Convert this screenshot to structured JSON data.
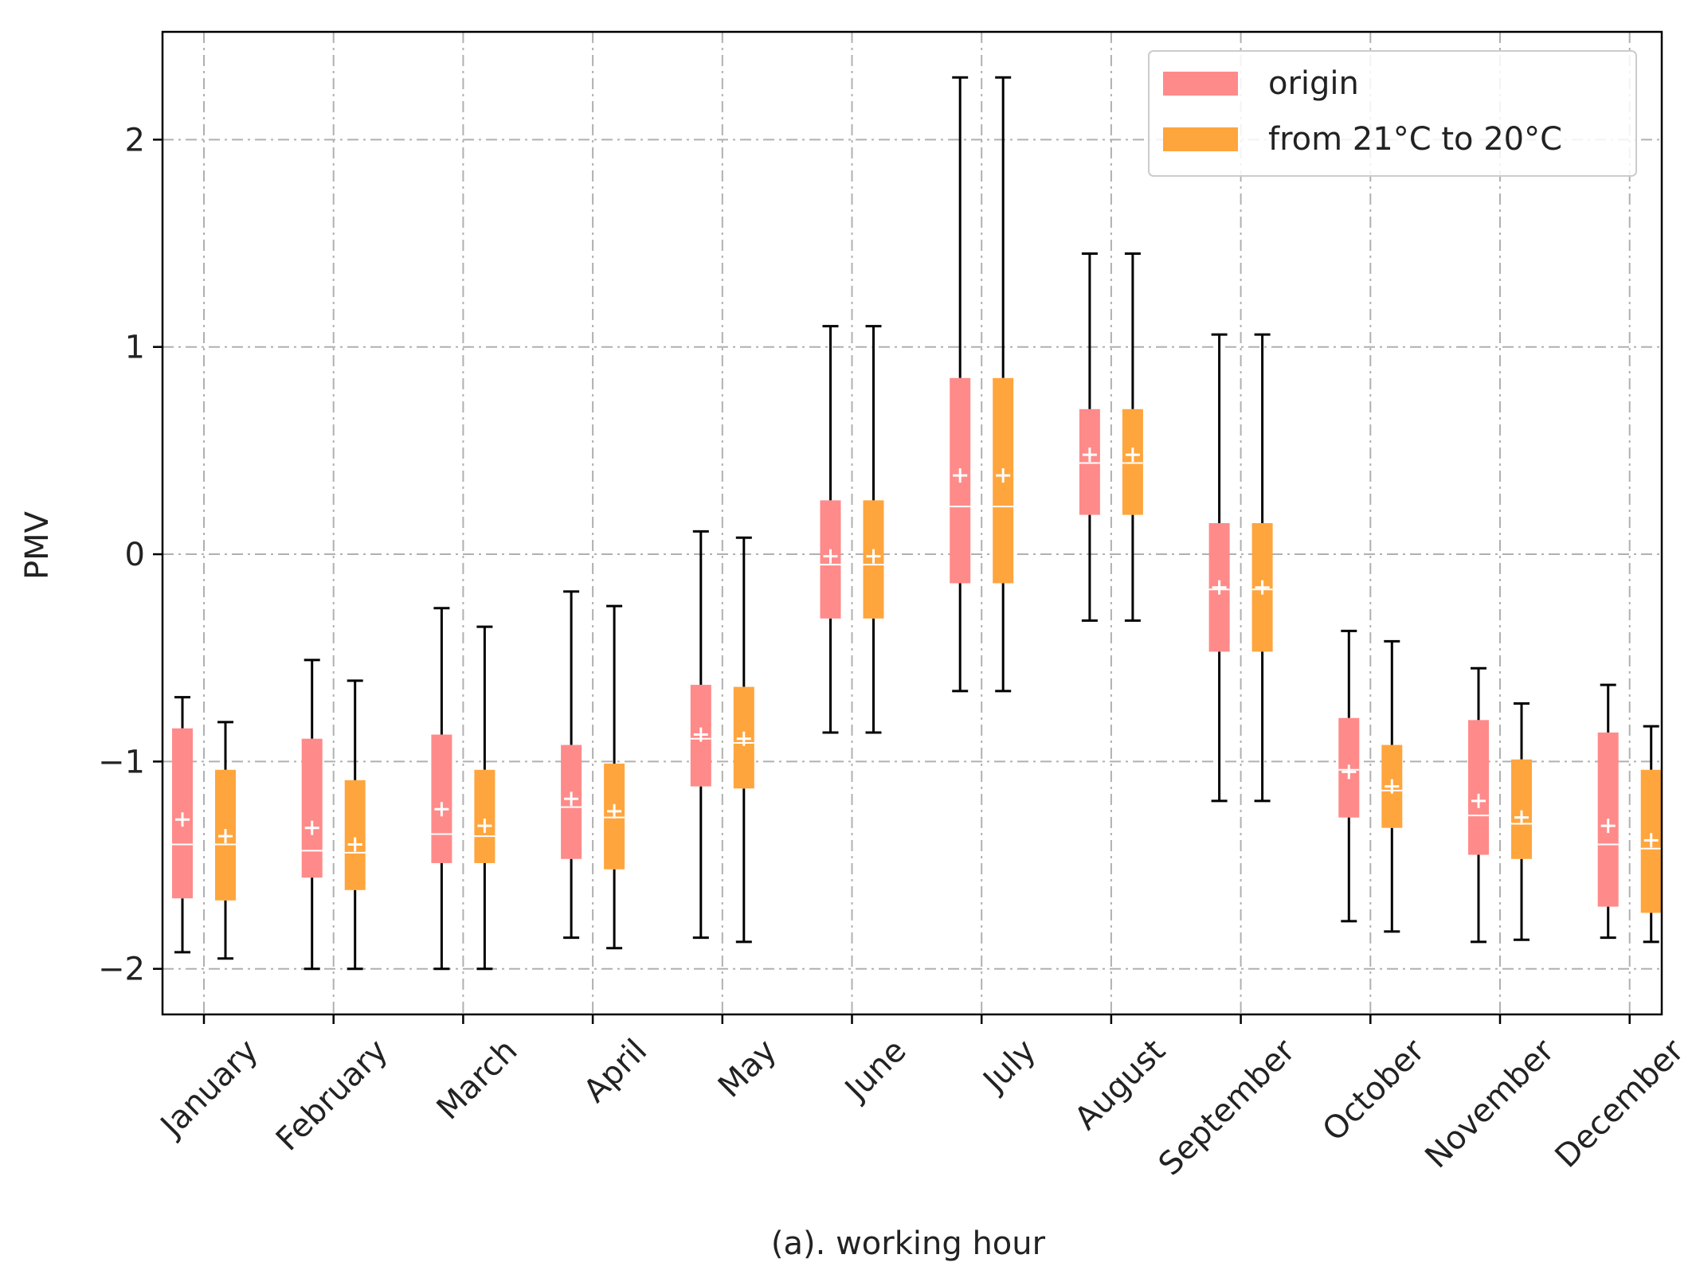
{
  "chart_data": {
    "type": "boxplot",
    "title": "",
    "xlabel": "(a). working hour",
    "ylabel": "PMV",
    "ylim": [
      -2.22,
      2.52
    ],
    "yticks": [
      -2,
      -1,
      0,
      1,
      2
    ],
    "ytick_labels": [
      "−2",
      "−1",
      "0",
      "1",
      "2"
    ],
    "grid": true,
    "legend_position": "top-right",
    "categories": [
      "January",
      "February",
      "March",
      "April",
      "May",
      "June",
      "July",
      "August",
      "September",
      "October",
      "November",
      "December"
    ],
    "series": [
      {
        "name": "origin",
        "color": "#ff8a8a",
        "boxes": [
          {
            "whislo": -1.92,
            "q1": -1.66,
            "median": -1.4,
            "mean": -1.28,
            "q3": -0.84,
            "whishi": -0.69
          },
          {
            "whislo": -2.0,
            "q1": -1.56,
            "median": -1.43,
            "mean": -1.32,
            "q3": -0.89,
            "whishi": -0.51
          },
          {
            "whislo": -2.0,
            "q1": -1.49,
            "median": -1.35,
            "mean": -1.23,
            "q3": -0.87,
            "whishi": -0.26
          },
          {
            "whislo": -1.85,
            "q1": -1.47,
            "median": -1.22,
            "mean": -1.18,
            "q3": -0.92,
            "whishi": -0.18
          },
          {
            "whislo": -1.85,
            "q1": -1.12,
            "median": -0.89,
            "mean": -0.87,
            "q3": -0.63,
            "whishi": 0.11
          },
          {
            "whislo": -0.86,
            "q1": -0.31,
            "median": -0.05,
            "mean": -0.01,
            "q3": 0.26,
            "whishi": 1.1
          },
          {
            "whislo": -0.66,
            "q1": -0.14,
            "median": 0.23,
            "mean": 0.38,
            "q3": 0.85,
            "whishi": 2.3
          },
          {
            "whislo": -0.32,
            "q1": 0.19,
            "median": 0.44,
            "mean": 0.48,
            "q3": 0.7,
            "whishi": 1.45
          },
          {
            "whislo": -1.19,
            "q1": -0.47,
            "median": -0.17,
            "mean": -0.16,
            "q3": 0.15,
            "whishi": 1.06
          },
          {
            "whislo": -1.77,
            "q1": -1.27,
            "median": -1.04,
            "mean": -1.05,
            "q3": -0.79,
            "whishi": -0.37
          },
          {
            "whislo": -1.87,
            "q1": -1.45,
            "median": -1.26,
            "mean": -1.19,
            "q3": -0.8,
            "whishi": -0.55
          },
          {
            "whislo": -1.85,
            "q1": -1.7,
            "median": -1.4,
            "mean": -1.31,
            "q3": -0.86,
            "whishi": -0.63
          }
        ]
      },
      {
        "name": "from 21°C to 20°C",
        "color": "#ffa53d",
        "boxes": [
          {
            "whislo": -1.95,
            "q1": -1.67,
            "median": -1.4,
            "mean": -1.36,
            "q3": -1.04,
            "whishi": -0.81
          },
          {
            "whislo": -2.0,
            "q1": -1.62,
            "median": -1.44,
            "mean": -1.4,
            "q3": -1.09,
            "whishi": -0.61
          },
          {
            "whislo": -2.0,
            "q1": -1.49,
            "median": -1.36,
            "mean": -1.31,
            "q3": -1.04,
            "whishi": -0.35
          },
          {
            "whislo": -1.9,
            "q1": -1.52,
            "median": -1.27,
            "mean": -1.24,
            "q3": -1.01,
            "whishi": -0.25
          },
          {
            "whislo": -1.87,
            "q1": -1.13,
            "median": -0.91,
            "mean": -0.89,
            "q3": -0.64,
            "whishi": 0.08
          },
          {
            "whislo": -0.86,
            "q1": -0.31,
            "median": -0.05,
            "mean": -0.01,
            "q3": 0.26,
            "whishi": 1.1
          },
          {
            "whislo": -0.66,
            "q1": -0.14,
            "median": 0.23,
            "mean": 0.38,
            "q3": 0.85,
            "whishi": 2.3
          },
          {
            "whislo": -0.32,
            "q1": 0.19,
            "median": 0.44,
            "mean": 0.48,
            "q3": 0.7,
            "whishi": 1.45
          },
          {
            "whislo": -1.19,
            "q1": -0.47,
            "median": -0.17,
            "mean": -0.16,
            "q3": 0.15,
            "whishi": 1.06
          },
          {
            "whislo": -1.82,
            "q1": -1.32,
            "median": -1.14,
            "mean": -1.12,
            "q3": -0.92,
            "whishi": -0.42
          },
          {
            "whislo": -1.86,
            "q1": -1.47,
            "median": -1.3,
            "mean": -1.27,
            "q3": -0.99,
            "whishi": -0.72
          },
          {
            "whislo": -1.87,
            "q1": -1.73,
            "median": -1.42,
            "mean": -1.38,
            "q3": -1.04,
            "whishi": -0.83
          }
        ]
      }
    ]
  }
}
